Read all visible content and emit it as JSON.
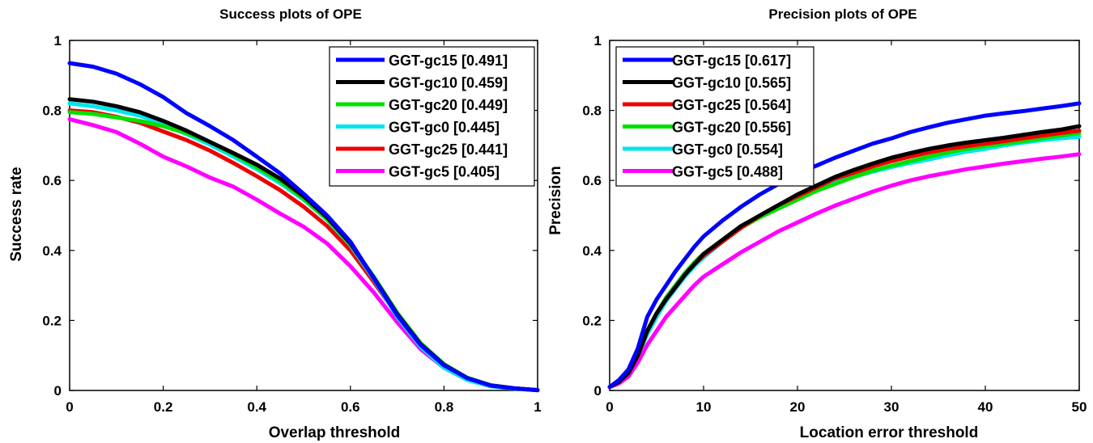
{
  "chart_data": [
    {
      "type": "line",
      "title": "Success plots of OPE",
      "xlabel": "Overlap threshold",
      "ylabel": "Success rate",
      "xlim": [
        0,
        1
      ],
      "ylim": [
        0,
        1
      ],
      "xticks": [
        0,
        0.2,
        0.4,
        0.6,
        0.8,
        1
      ],
      "xtick_labels": [
        "0",
        "0.2",
        "0.4",
        "0.6",
        "0.8",
        "1"
      ],
      "yticks": [
        0,
        0.2,
        0.4,
        0.6,
        0.8,
        1
      ],
      "ytick_labels": [
        "0",
        "0.2",
        "0.4",
        "0.6",
        "0.8",
        "1"
      ],
      "legend_position": "top-right",
      "x": [
        0,
        0.05,
        0.1,
        0.15,
        0.2,
        0.25,
        0.3,
        0.35,
        0.4,
        0.45,
        0.5,
        0.55,
        0.6,
        0.65,
        0.7,
        0.75,
        0.8,
        0.85,
        0.9,
        0.95,
        1
      ],
      "series": [
        {
          "name": "GGT-gc15",
          "score": "0.491",
          "legend": "GGT-gc15 [0.491]",
          "color": "#0000ff",
          "values": [
            0.935,
            0.925,
            0.905,
            0.875,
            0.838,
            0.792,
            0.755,
            0.715,
            0.668,
            0.62,
            0.562,
            0.5,
            0.425,
            0.32,
            0.215,
            0.13,
            0.072,
            0.035,
            0.014,
            0.006,
            0.001
          ]
        },
        {
          "name": "GGT-gc10",
          "score": "0.459",
          "legend": "GGT-gc10 [0.459]",
          "color": "#000000",
          "values": [
            0.832,
            0.825,
            0.812,
            0.795,
            0.77,
            0.742,
            0.71,
            0.678,
            0.645,
            0.605,
            0.555,
            0.495,
            0.42,
            0.322,
            0.218,
            0.132,
            0.073,
            0.035,
            0.014,
            0.006,
            0.001
          ]
        },
        {
          "name": "GGT-gc20",
          "score": "0.449",
          "legend": "GGT-gc20 [0.449]",
          "color": "#00e000",
          "values": [
            0.795,
            0.79,
            0.78,
            0.77,
            0.755,
            0.735,
            0.71,
            0.675,
            0.638,
            0.598,
            0.548,
            0.49,
            0.418,
            0.325,
            0.222,
            0.135,
            0.075,
            0.036,
            0.015,
            0.006,
            0.001
          ]
        },
        {
          "name": "GGT-gc0",
          "score": "0.445",
          "legend": "GGT-gc0 [0.445]",
          "color": "#00e5ee",
          "values": [
            0.82,
            0.812,
            0.8,
            0.785,
            0.762,
            0.732,
            0.702,
            0.668,
            0.632,
            0.592,
            0.545,
            0.488,
            0.415,
            0.318,
            0.21,
            0.125,
            0.065,
            0.03,
            0.012,
            0.005,
            0.001
          ]
        },
        {
          "name": "GGT-gc25",
          "score": "0.441",
          "legend": "GGT-gc25 [0.441]",
          "color": "#ee0000",
          "values": [
            0.8,
            0.795,
            0.782,
            0.765,
            0.74,
            0.715,
            0.685,
            0.65,
            0.612,
            0.572,
            0.525,
            0.47,
            0.4,
            0.31,
            0.215,
            0.132,
            0.075,
            0.035,
            0.014,
            0.006,
            0.001
          ]
        },
        {
          "name": "GGT-gc5",
          "score": "0.405",
          "legend": "GGT-gc5 [0.405]",
          "color": "#ff00ff",
          "values": [
            0.775,
            0.758,
            0.738,
            0.705,
            0.668,
            0.64,
            0.608,
            0.582,
            0.545,
            0.505,
            0.468,
            0.42,
            0.355,
            0.28,
            0.195,
            0.118,
            0.065,
            0.03,
            0.012,
            0.005,
            0.001
          ]
        }
      ]
    },
    {
      "type": "line",
      "title": "Precision plots of OPE",
      "xlabel": "Location error threshold",
      "ylabel": "Precision",
      "xlim": [
        0,
        50
      ],
      "ylim": [
        0,
        1
      ],
      "xticks": [
        0,
        10,
        20,
        30,
        40,
        50
      ],
      "xtick_labels": [
        "0",
        "10",
        "20",
        "30",
        "40",
        "50"
      ],
      "yticks": [
        0,
        0.2,
        0.4,
        0.6,
        0.8,
        1
      ],
      "ytick_labels": [
        "0",
        "0.2",
        "0.4",
        "0.6",
        "0.8",
        "1"
      ],
      "legend_position": "top-left",
      "x": [
        0,
        1,
        2,
        3,
        4,
        5,
        6,
        7,
        8,
        9,
        10,
        12,
        14,
        16,
        18,
        20,
        22,
        24,
        26,
        28,
        30,
        32,
        34,
        36,
        38,
        40,
        42,
        44,
        46,
        48,
        50
      ],
      "series": [
        {
          "name": "GGT-gc15",
          "score": "0.617",
          "legend": "GGT-gc15 [0.617]",
          "color": "#0000ff",
          "values": [
            0.01,
            0.03,
            0.06,
            0.12,
            0.21,
            0.26,
            0.3,
            0.34,
            0.375,
            0.41,
            0.44,
            0.485,
            0.525,
            0.56,
            0.59,
            0.62,
            0.642,
            0.665,
            0.685,
            0.705,
            0.72,
            0.738,
            0.752,
            0.765,
            0.775,
            0.785,
            0.792,
            0.798,
            0.805,
            0.812,
            0.82
          ]
        },
        {
          "name": "GGT-gc10",
          "score": "0.565",
          "legend": "GGT-gc10 [0.565]",
          "color": "#000000",
          "values": [
            0.01,
            0.025,
            0.05,
            0.1,
            0.17,
            0.22,
            0.26,
            0.295,
            0.33,
            0.36,
            0.39,
            0.43,
            0.47,
            0.5,
            0.53,
            0.56,
            0.585,
            0.61,
            0.63,
            0.648,
            0.665,
            0.678,
            0.69,
            0.7,
            0.708,
            0.715,
            0.722,
            0.73,
            0.738,
            0.745,
            0.755
          ]
        },
        {
          "name": "GGT-gc25",
          "score": "0.564",
          "legend": "GGT-gc25 [0.564]",
          "color": "#ee0000",
          "values": [
            0.01,
            0.025,
            0.05,
            0.1,
            0.17,
            0.22,
            0.26,
            0.295,
            0.33,
            0.36,
            0.385,
            0.425,
            0.465,
            0.5,
            0.53,
            0.555,
            0.58,
            0.605,
            0.622,
            0.64,
            0.655,
            0.668,
            0.68,
            0.69,
            0.698,
            0.705,
            0.712,
            0.72,
            0.728,
            0.735,
            0.742
          ]
        },
        {
          "name": "GGT-gc20",
          "score": "0.556",
          "legend": "GGT-gc20 [0.556]",
          "color": "#00e000",
          "values": [
            0.01,
            0.025,
            0.05,
            0.1,
            0.17,
            0.22,
            0.265,
            0.3,
            0.335,
            0.365,
            0.39,
            0.43,
            0.465,
            0.495,
            0.52,
            0.545,
            0.57,
            0.59,
            0.61,
            0.628,
            0.642,
            0.655,
            0.668,
            0.68,
            0.69,
            0.698,
            0.705,
            0.712,
            0.72,
            0.728,
            0.735
          ]
        },
        {
          "name": "GGT-gc0",
          "score": "0.554",
          "legend": "GGT-gc0 [0.554]",
          "color": "#00e5ee",
          "values": [
            0.01,
            0.025,
            0.05,
            0.1,
            0.16,
            0.21,
            0.255,
            0.29,
            0.325,
            0.355,
            0.38,
            0.425,
            0.465,
            0.5,
            0.53,
            0.555,
            0.575,
            0.595,
            0.61,
            0.625,
            0.638,
            0.65,
            0.66,
            0.672,
            0.682,
            0.69,
            0.7,
            0.708,
            0.715,
            0.72,
            0.725
          ]
        },
        {
          "name": "GGT-gc5",
          "score": "0.488",
          "legend": "GGT-gc5 [0.488]",
          "color": "#ff00ff",
          "values": [
            0.01,
            0.02,
            0.04,
            0.08,
            0.13,
            0.17,
            0.21,
            0.24,
            0.27,
            0.3,
            0.325,
            0.36,
            0.395,
            0.425,
            0.455,
            0.48,
            0.505,
            0.528,
            0.548,
            0.568,
            0.585,
            0.6,
            0.612,
            0.622,
            0.632,
            0.64,
            0.648,
            0.655,
            0.662,
            0.668,
            0.675
          ]
        }
      ]
    }
  ]
}
